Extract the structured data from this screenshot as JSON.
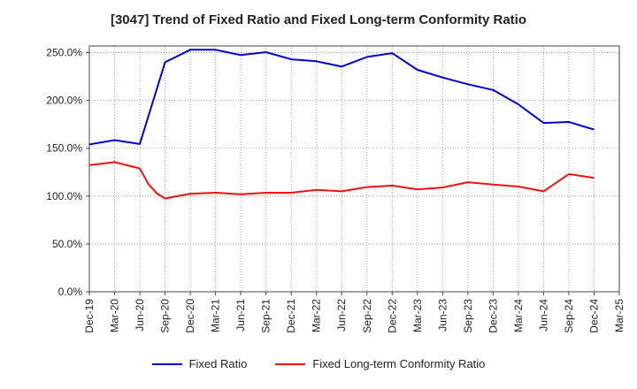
{
  "chart_data": {
    "type": "line",
    "title": "[3047]  Trend of Fixed Ratio and Fixed Long-term Conformity Ratio",
    "xlabel": "",
    "ylabel": "",
    "x_ticks": [
      "Dec-19",
      "Mar-20",
      "Jun-20",
      "Sep-20",
      "Dec-20",
      "Mar-21",
      "Jun-21",
      "Sep-21",
      "Dec-21",
      "Mar-22",
      "Jun-22",
      "Sep-22",
      "Dec-22",
      "Mar-23",
      "Jun-23",
      "Sep-23",
      "Dec-23",
      "Mar-24",
      "Jun-24",
      "Sep-24",
      "Dec-24",
      "Mar-25"
    ],
    "y_ticks": [
      "0.0%",
      "50.0%",
      "100.0%",
      "150.0%",
      "200.0%",
      "250.0%"
    ],
    "ylim": [
      0,
      257
    ],
    "y_unit": "%",
    "grid": true,
    "legend_position": "bottom",
    "series": [
      {
        "name": "Fixed Ratio",
        "color": "#0000cc",
        "points": [
          {
            "x": 0,
            "y": 154.0
          },
          {
            "x": 1,
            "y": 158.5
          },
          {
            "x": 2,
            "y": 154.5
          },
          {
            "x": 3,
            "y": 240.0
          },
          {
            "x": 4,
            "y": 253.0
          },
          {
            "x": 5,
            "y": 253.0
          },
          {
            "x": 6,
            "y": 247.5
          },
          {
            "x": 7,
            "y": 250.5
          },
          {
            "x": 8,
            "y": 243.0
          },
          {
            "x": 9,
            "y": 241.0
          },
          {
            "x": 10,
            "y": 235.5
          },
          {
            "x": 11,
            "y": 245.5
          },
          {
            "x": 12,
            "y": 249.5
          },
          {
            "x": 13,
            "y": 232.0
          },
          {
            "x": 14,
            "y": 224.0
          },
          {
            "x": 15,
            "y": 217.0
          },
          {
            "x": 16,
            "y": 211.0
          },
          {
            "x": 17,
            "y": 196.0
          },
          {
            "x": 18,
            "y": 176.5
          },
          {
            "x": 19,
            "y": 177.5
          },
          {
            "x": 20,
            "y": 169.5
          }
        ]
      },
      {
        "name": "Fixed Long-term Conformity Ratio",
        "color": "#ee1111",
        "points": [
          {
            "x": 0,
            "y": 132.5
          },
          {
            "x": 1,
            "y": 135.5
          },
          {
            "x": 2,
            "y": 129.0
          },
          {
            "x": 2.33,
            "y": 113.0
          },
          {
            "x": 2.67,
            "y": 103.0
          },
          {
            "x": 3,
            "y": 97.5
          },
          {
            "x": 4,
            "y": 102.5
          },
          {
            "x": 5,
            "y": 103.5
          },
          {
            "x": 6,
            "y": 102.0
          },
          {
            "x": 7,
            "y": 103.5
          },
          {
            "x": 8,
            "y": 103.5
          },
          {
            "x": 9,
            "y": 106.5
          },
          {
            "x": 10,
            "y": 105.0
          },
          {
            "x": 11,
            "y": 109.5
          },
          {
            "x": 12,
            "y": 111.0
          },
          {
            "x": 13,
            "y": 107.0
          },
          {
            "x": 14,
            "y": 109.0
          },
          {
            "x": 15,
            "y": 114.5
          },
          {
            "x": 16,
            "y": 112.0
          },
          {
            "x": 17,
            "y": 110.0
          },
          {
            "x": 18,
            "y": 105.0
          },
          {
            "x": 19,
            "y": 123.0
          },
          {
            "x": 20,
            "y": 119.0
          }
        ]
      }
    ]
  }
}
